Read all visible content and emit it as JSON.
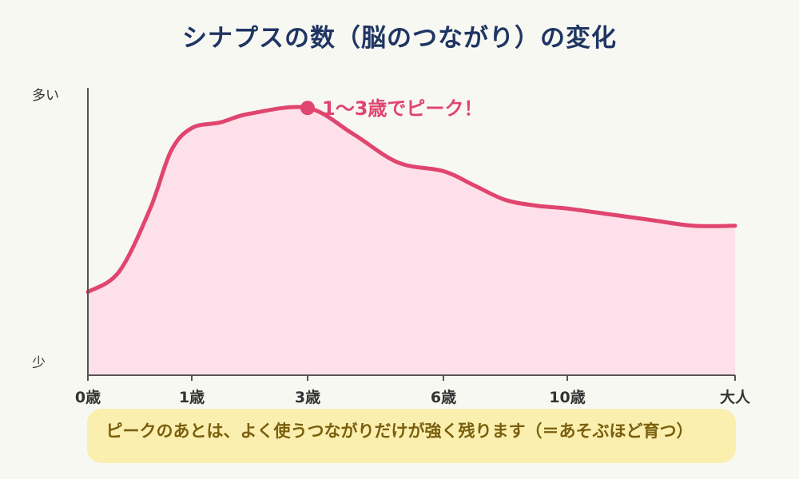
{
  "title": "シナプスの数（脳のつながり）の変化",
  "chart_data": {
    "type": "area",
    "x_ticks": [
      "0歳",
      "1歳",
      "3歳",
      "6歳",
      "10歳",
      "大人"
    ],
    "y_tick_labels": {
      "top": "多い",
      "bottom": "少"
    },
    "series": [
      {
        "values": [
          {
            "x": 0,
            "y": 0.29
          },
          {
            "x": 0.3,
            "y": 0.36
          },
          {
            "x": 0.6,
            "y": 0.58
          },
          {
            "x": 0.8,
            "y": 0.78
          },
          {
            "x": 1,
            "y": 0.86
          },
          {
            "x": 1.5,
            "y": 0.88
          },
          {
            "x": 2,
            "y": 0.91
          },
          {
            "x": 3,
            "y": 0.93
          },
          {
            "x": 4,
            "y": 0.84
          },
          {
            "x": 5,
            "y": 0.74
          },
          {
            "x": 6,
            "y": 0.71
          },
          {
            "x": 7,
            "y": 0.66
          },
          {
            "x": 8,
            "y": 0.61
          },
          {
            "x": 9,
            "y": 0.59
          },
          {
            "x": 10,
            "y": 0.58
          },
          {
            "x": 11,
            "y": 0.56
          },
          {
            "x": 12,
            "y": 0.54
          },
          {
            "x": 13,
            "y": 0.52
          },
          {
            "x": 14,
            "y": 0.52
          }
        ]
      }
    ],
    "annotation": {
      "x": 3,
      "y": 0.93,
      "text": "1〜3歳でピーク！"
    },
    "colors": {
      "line": "#e0456e",
      "fill": "#fde0ea",
      "axis": "#555555"
    }
  },
  "note": "ピークのあとは、よく使うつながりだけが強く残ります（＝あそぶほど育つ）"
}
